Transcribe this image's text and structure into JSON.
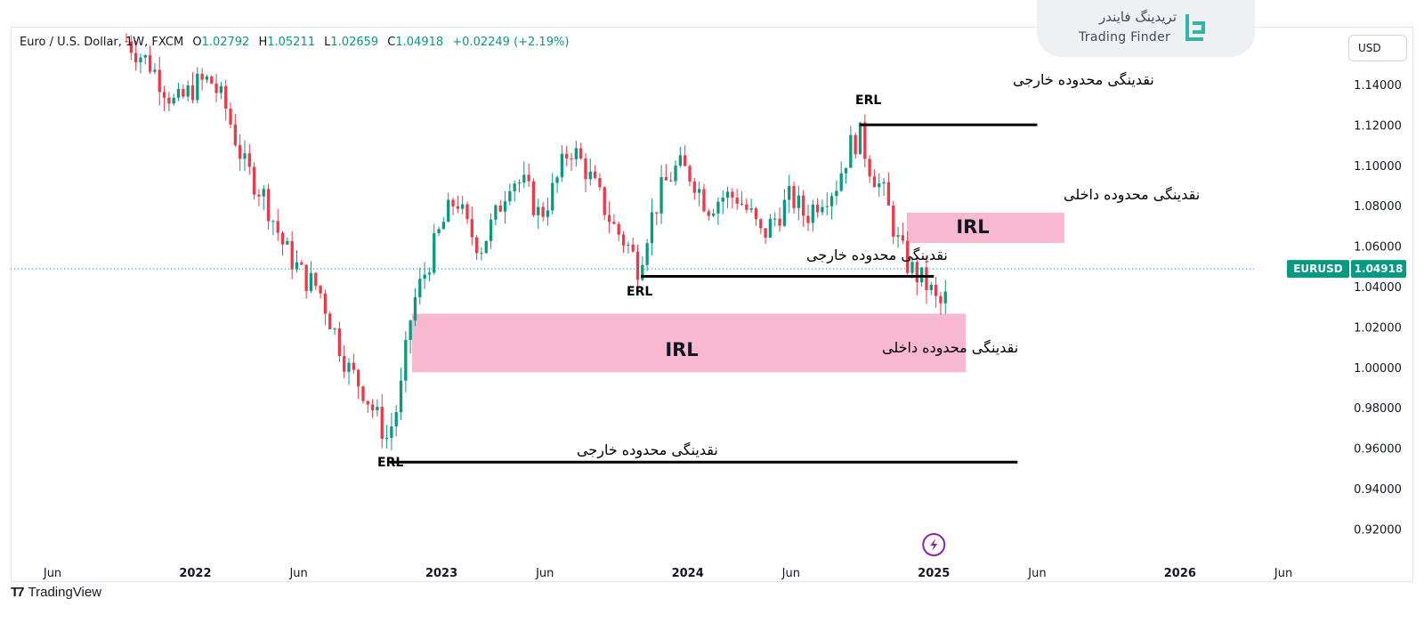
{
  "legend": {
    "symbol": "Euro / U.S. Dollar, 1W, FXCM",
    "o_label": "O",
    "o": "1.02792",
    "h_label": "H",
    "h": "1.05211",
    "l_label": "L",
    "l": "1.02659",
    "c_label": "C",
    "c": "1.04918",
    "change": "+0.02249 (+2.19%)"
  },
  "currency": "USD",
  "logo": {
    "fa": "تریدینگ فایندر",
    "en": "Trading Finder"
  },
  "footer": {
    "brand": "TradingView"
  },
  "colors": {
    "up": "#089981",
    "down": "#f23645",
    "zone": "#f8b4cc",
    "line": "#000000"
  },
  "chart_data": {
    "type": "candlestick",
    "title": "Euro / U.S. Dollar, 1W, FXCM",
    "y_axis": {
      "range": [
        0.91,
        1.155
      ],
      "ticks": [
        "1.14000",
        "1.12000",
        "1.10000",
        "1.08000",
        "1.06000",
        "1.04000",
        "1.02000",
        "1.00000",
        "0.98000",
        "0.96000",
        "0.94000",
        "0.92000"
      ]
    },
    "x_axis": {
      "range": [
        2021.25,
        2026.55
      ],
      "ticks": [
        {
          "label": "Jun",
          "t": 2021.42
        },
        {
          "label": "2022",
          "t": 2022.0
        },
        {
          "label": "Jun",
          "t": 2022.42
        },
        {
          "label": "2023",
          "t": 2023.0
        },
        {
          "label": "Jun",
          "t": 2023.42
        },
        {
          "label": "2024",
          "t": 2024.0
        },
        {
          "label": "Jun",
          "t": 2024.42
        },
        {
          "label": "2025",
          "t": 2025.0
        },
        {
          "label": "Jun",
          "t": 2025.42
        },
        {
          "label": "2026",
          "t": 2026.0
        },
        {
          "label": "Jun",
          "t": 2026.42
        }
      ]
    },
    "last_price": {
      "symbol": "EURUSD",
      "value": "1.04918",
      "y": 1.04918
    },
    "price_path": [
      [
        2021.72,
        1.162
      ],
      [
        2021.82,
        1.15
      ],
      [
        2021.92,
        1.13
      ],
      [
        2022.0,
        1.14
      ],
      [
        2022.06,
        1.143
      ],
      [
        2022.12,
        1.13
      ],
      [
        2022.2,
        1.1
      ],
      [
        2022.28,
        1.085
      ],
      [
        2022.36,
        1.06
      ],
      [
        2022.44,
        1.045
      ],
      [
        2022.5,
        1.04
      ],
      [
        2022.56,
        1.02
      ],
      [
        2022.62,
        1.0
      ],
      [
        2022.68,
        0.99
      ],
      [
        2022.74,
        0.975
      ],
      [
        2022.78,
        0.965
      ],
      [
        2022.83,
        0.985
      ],
      [
        2022.88,
        1.03
      ],
      [
        2022.94,
        1.05
      ],
      [
        2023.0,
        1.07
      ],
      [
        2023.06,
        1.085
      ],
      [
        2023.1,
        1.07
      ],
      [
        2023.16,
        1.06
      ],
      [
        2023.22,
        1.075
      ],
      [
        2023.28,
        1.095
      ],
      [
        2023.34,
        1.09
      ],
      [
        2023.4,
        1.075
      ],
      [
        2023.46,
        1.09
      ],
      [
        2023.52,
        1.11
      ],
      [
        2023.58,
        1.1
      ],
      [
        2023.64,
        1.085
      ],
      [
        2023.7,
        1.07
      ],
      [
        2023.76,
        1.06
      ],
      [
        2023.8,
        1.05
      ],
      [
        2023.84,
        1.07
      ],
      [
        2023.9,
        1.09
      ],
      [
        2023.96,
        1.1
      ],
      [
        2024.02,
        1.095
      ],
      [
        2024.08,
        1.08
      ],
      [
        2024.14,
        1.085
      ],
      [
        2024.2,
        1.085
      ],
      [
        2024.26,
        1.075
      ],
      [
        2024.3,
        1.065
      ],
      [
        2024.36,
        1.075
      ],
      [
        2024.42,
        1.085
      ],
      [
        2024.48,
        1.075
      ],
      [
        2024.54,
        1.085
      ],
      [
        2024.6,
        1.09
      ],
      [
        2024.66,
        1.11
      ],
      [
        2024.7,
        1.115
      ],
      [
        2024.74,
        1.1
      ],
      [
        2024.8,
        1.085
      ],
      [
        2024.86,
        1.06
      ],
      [
        2024.9,
        1.05
      ],
      [
        2024.94,
        1.045
      ],
      [
        2024.98,
        1.04
      ],
      [
        2025.02,
        1.03
      ],
      [
        2025.05,
        1.035
      ]
    ],
    "levels": [
      {
        "type": "ERL",
        "label": "ERL",
        "note": "نقدینگی محدوده خارجی",
        "y": 1.1205,
        "x0": 2024.7,
        "x1": 2025.42
      },
      {
        "type": "ERL",
        "label": "ERL",
        "note": "نقدینگی محدوده خارجی",
        "y": 1.0455,
        "x0": 2023.81,
        "x1": 2025.0
      },
      {
        "type": "ERL",
        "label": "ERL",
        "note": "نقدینگی محدوده خارجی",
        "y": 0.9535,
        "x0": 2022.79,
        "x1": 2025.34
      }
    ],
    "zones": [
      {
        "type": "IRL",
        "label": "IRL",
        "note": "نقدینگی محدوده داخلی",
        "y0": 1.062,
        "y1": 1.077,
        "x0": 2024.89,
        "x1": 2025.53
      },
      {
        "type": "IRL",
        "label": "IRL",
        "note": "نقدینگی محدوده داخلی",
        "y0": 0.998,
        "y1": 1.027,
        "x0": 2022.88,
        "x1": 2025.13
      }
    ]
  }
}
